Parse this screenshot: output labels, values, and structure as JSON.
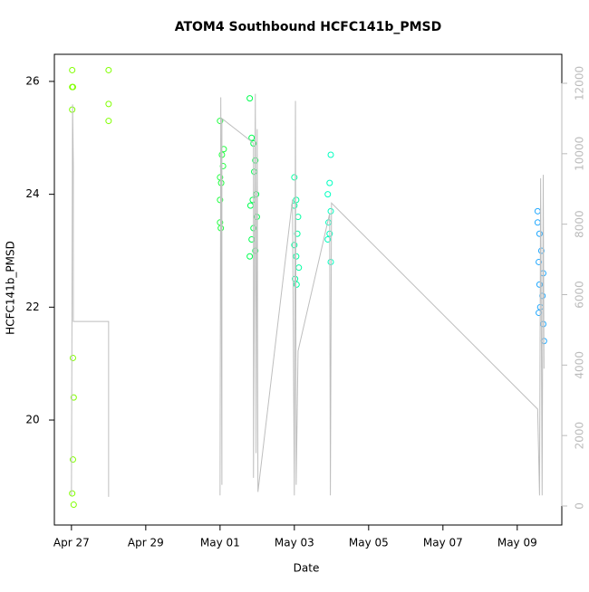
{
  "chart_data": {
    "type": "scatter",
    "title": "ATOM4 Southbound HCFC141b_PMSD",
    "xlabel": "Date",
    "ylabel": "HCFC141b_PMSD",
    "xlim": [
      -0.46,
      13.2
    ],
    "xticks": [
      {
        "value": 0,
        "label": "Apr 27"
      },
      {
        "value": 2,
        "label": "Apr 29"
      },
      {
        "value": 4,
        "label": "May 01"
      },
      {
        "value": 6,
        "label": "May 03"
      },
      {
        "value": 8,
        "label": "May 05"
      },
      {
        "value": 10,
        "label": "May 07"
      },
      {
        "value": 12,
        "label": "May 09"
      }
    ],
    "ylim": [
      18.14,
      26.48
    ],
    "yticks": [
      20,
      22,
      24,
      26
    ],
    "y2lim": [
      -540,
      12822
    ],
    "y2ticks": [
      0,
      2000,
      4000,
      6000,
      8000,
      10000,
      12000
    ],
    "series": [
      {
        "color": "#80ff00",
        "x": [
          0.02,
          0.02,
          0.04,
          0.02,
          0.04,
          0.06,
          0.04,
          0.02,
          0.06
        ],
        "values": [
          26.2,
          25.9,
          25.9,
          25.5,
          21.1,
          20.4,
          19.3,
          18.7,
          18.5
        ]
      },
      {
        "color": "#80ff00",
        "x": [
          1.0,
          1.0,
          1.0
        ],
        "values": [
          26.2,
          25.6,
          25.3
        ]
      },
      {
        "color": "#20ff40",
        "x": [
          4.0,
          4.1,
          4.05,
          4.08,
          4.0,
          4.03,
          4.0,
          4.0,
          4.02
        ],
        "values": [
          25.3,
          24.8,
          24.7,
          24.5,
          24.3,
          24.2,
          23.9,
          23.5,
          23.4
        ]
      },
      {
        "color": "#00ff50",
        "x": [
          4.8,
          4.85,
          4.9,
          4.95,
          4.92,
          4.97,
          4.88,
          4.82,
          4.99,
          4.9,
          4.85,
          4.95,
          4.8
        ],
        "values": [
          25.7,
          25.0,
          24.9,
          24.6,
          24.4,
          24.0,
          23.9,
          23.8,
          23.6,
          23.4,
          23.2,
          23.0,
          22.9
        ]
      },
      {
        "color": "#00ffa0",
        "x": [
          6.0,
          6.05,
          6.0,
          6.1,
          6.08,
          6.0,
          6.05,
          6.12,
          6.02,
          6.06
        ],
        "values": [
          24.3,
          23.9,
          23.8,
          23.6,
          23.3,
          23.1,
          22.9,
          22.7,
          22.5,
          22.4
        ]
      },
      {
        "color": "#00ffc0",
        "x": [
          6.98,
          6.95,
          6.9,
          6.98,
          6.92,
          6.95,
          6.9,
          6.98
        ],
        "values": [
          24.7,
          24.2,
          24.0,
          23.7,
          23.5,
          23.3,
          23.2,
          22.8
        ]
      },
      {
        "color": "#20a8ff",
        "x": [
          12.55,
          12.55,
          12.6,
          12.65,
          12.58,
          12.7,
          12.6,
          12.68,
          12.62,
          12.58,
          12.7,
          12.72
        ],
        "values": [
          23.7,
          23.5,
          23.3,
          23.0,
          22.8,
          22.6,
          22.4,
          22.2,
          22.0,
          21.9,
          21.7,
          21.4
        ]
      },
      {
        "type": "line",
        "axis": "y2",
        "color": "#bebebe",
        "x": [
          0,
          0.03,
          0.05,
          0.05,
          1.0,
          1.0,
          null,
          4.0,
          4.02,
          4.05,
          4.05,
          4.9,
          4.9,
          4.95,
          4.97,
          5.0,
          5.02,
          5.95,
          6.0,
          6.03,
          6.05,
          6.1,
          6.95,
          6.97,
          7.0,
          12.55,
          12.6,
          12.63,
          12.67,
          12.7,
          12.72
        ],
        "values": [
          300,
          11400,
          9670,
          5240,
          5240,
          260,
          null,
          300,
          11600,
          600,
          11000,
          10300,
          800,
          11700,
          1500,
          10700,
          400,
          8700,
          300,
          11500,
          600,
          4400,
          8300,
          300,
          8600,
          2750,
          300,
          9300,
          300,
          9400,
          3900
        ]
      }
    ]
  }
}
